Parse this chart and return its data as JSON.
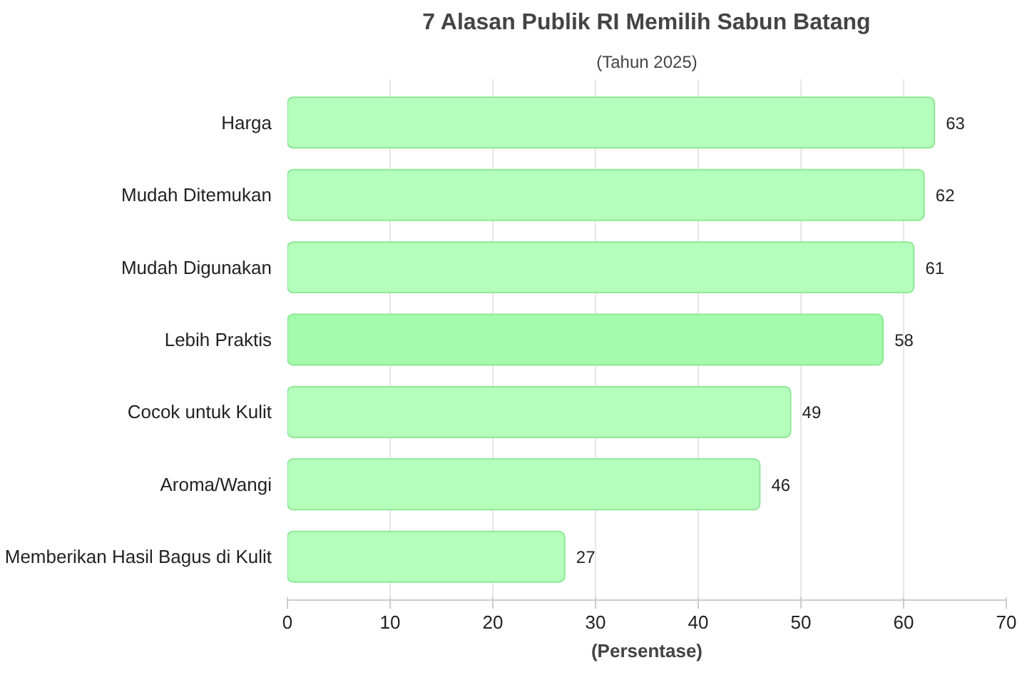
{
  "chart_data": {
    "type": "bar",
    "orientation": "horizontal",
    "title": "7 Alasan Publik RI Memilih Sabun Batang",
    "subtitle": "(Tahun 2025)",
    "xlabel": "(Persentase)",
    "categories": [
      "Harga",
      "Mudah Ditemukan",
      "Mudah Digunakan",
      "Lebih Praktis",
      "Cocok untuk Kulit",
      "Aroma/Wangi",
      "Memberikan Hasil Bagus di Kulit"
    ],
    "values": [
      63,
      62,
      61,
      58,
      49,
      46,
      27
    ],
    "colors": [
      "#b5ffbc",
      "#b5ffbc",
      "#b5ffbc",
      "#a3fbab",
      "#b5ffbc",
      "#b5ffbc",
      "#b5ffbc"
    ],
    "xlim": [
      0,
      70
    ],
    "xticks": [
      0,
      10,
      20,
      30,
      40,
      50,
      60,
      70
    ],
    "grid": "x",
    "data_labels": true
  }
}
